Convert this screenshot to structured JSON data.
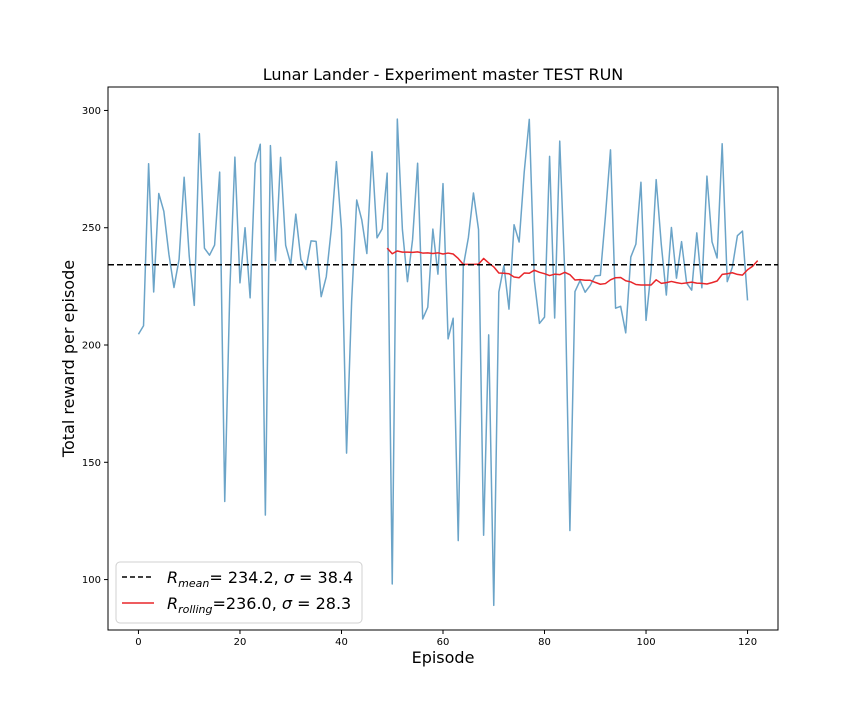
{
  "chart_data": {
    "type": "line",
    "title": "Lunar Lander - Experiment  master TEST RUN",
    "xlabel": "Episode",
    "ylabel": "Total reward per episode",
    "xlim": [
      -6,
      126
    ],
    "ylim": [
      78.5,
      310
    ],
    "xticks": [
      0,
      20,
      40,
      60,
      80,
      100,
      120
    ],
    "yticks": [
      100,
      150,
      200,
      250,
      300
    ],
    "grid": false,
    "legend_position": "lower-left",
    "colors": {
      "episode": "#5b9ac2",
      "mean": "#000000",
      "rolling": "#e8262a"
    },
    "legend": [
      {
        "series": "mean",
        "label": "R_mean=  234.2, σ = 38.4",
        "style": "dashed"
      },
      {
        "series": "rolling",
        "label": "R_rolling=236.0, σ = 28.3",
        "style": "solid"
      }
    ],
    "mean_value": 234.2,
    "series": [
      {
        "id": "episode",
        "x_start": 0,
        "values": [
          204.6,
          208.2,
          277.3,
          222.6,
          264.6,
          257.0,
          238.7,
          224.5,
          236.5,
          271.5,
          238.0,
          216.9,
          290.1,
          241.3,
          238.3,
          242.6,
          273.7,
          133.3,
          223.3,
          280.1,
          226.5,
          250.0,
          220.1,
          277.4,
          285.6,
          127.5,
          285.0,
          235.9,
          280.0,
          242.5,
          234.5,
          255.8,
          236.5,
          232.2,
          244.4,
          244.2,
          220.6,
          229.1,
          249.6,
          278.2,
          249.4,
          153.9,
          218.7,
          261.8,
          253.3,
          239.0,
          282.4,
          245.7,
          249.5,
          273.3,
          98.1,
          296.3,
          249.3,
          227.0,
          244.9,
          277.5,
          211.1,
          216.1,
          249.4,
          230.2,
          268.8,
          202.6,
          211.4,
          116.6,
          233.6,
          245.8,
          264.8,
          249.2,
          118.9,
          204.3,
          89.0,
          222.6,
          233.9,
          215.3,
          251.3,
          243.9,
          273.7,
          296.2,
          227.5,
          209.2,
          211.9,
          280.4,
          211.5,
          286.9,
          230.1,
          120.9,
          222.8,
          227.5,
          222.5,
          225.4,
          229.5,
          229.7,
          254.9,
          283.2,
          215.7,
          216.5,
          205.2,
          237.5,
          243.0,
          269.4,
          210.5,
          231.7,
          270.5,
          243.0,
          221.3,
          250.1,
          228.5,
          244.1,
          226.4,
          223.4,
          247.8,
          224.4,
          272.0,
          244.0,
          237.1,
          285.8,
          227.0,
          233.1,
          246.6,
          248.6,
          219.0
        ]
      },
      {
        "id": "rolling",
        "x_start": 49,
        "values": [
          241.3,
          238.9,
          240.1,
          239.6,
          239.6,
          239.5,
          239.7,
          239.2,
          239.3,
          239.0,
          239.3,
          238.8,
          239.2,
          238.8,
          236.9,
          234.4,
          234.4,
          234.4,
          234.5,
          236.9,
          235.0,
          233.3,
          230.7,
          230.6,
          230.4,
          229.0,
          228.7,
          230.7,
          230.6,
          231.9,
          231.0,
          230.4,
          229.6,
          230.2,
          230.0,
          231.0,
          230.0,
          227.7,
          227.9,
          227.6,
          227.6,
          226.7,
          225.9,
          226.2,
          227.8,
          228.7,
          228.8,
          227.4,
          226.9,
          225.8,
          225.6,
          225.6,
          225.6,
          227.8,
          226.3,
          226.6,
          227.1,
          226.6,
          226.2,
          226.5,
          226.8,
          226.4,
          226.3,
          226.0,
          226.6,
          227.3,
          230.1,
          230.4,
          230.8,
          230.1,
          229.8,
          232.1,
          233.6,
          236.0
        ]
      }
    ]
  }
}
